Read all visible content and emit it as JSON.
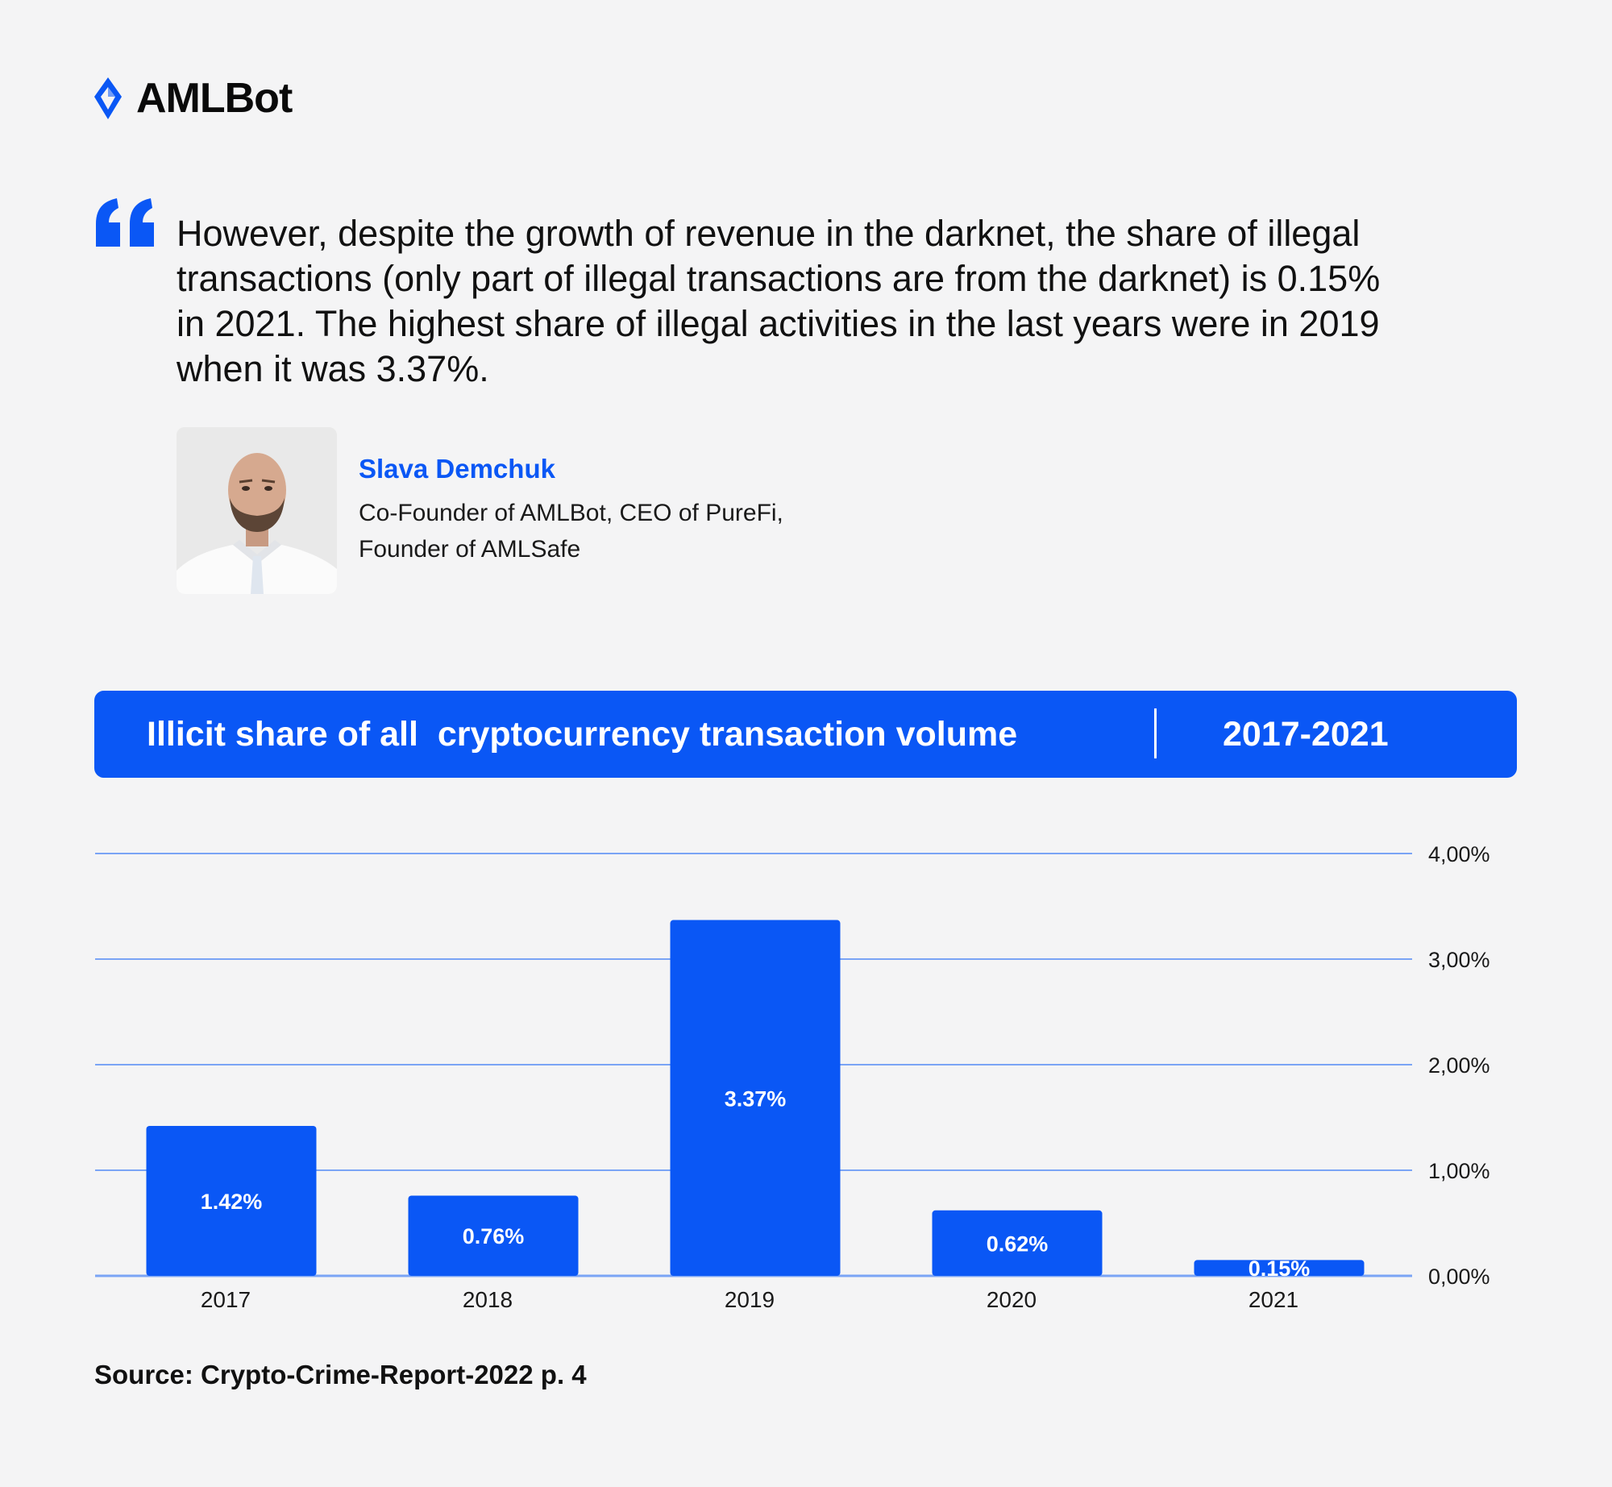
{
  "brand": {
    "name": "AMLBot",
    "accent": "#0a57f5"
  },
  "quote": {
    "icon": "quote-mark-icon",
    "lines": [
      "However, despite the growth of revenue in the darknet, the share of illegal",
      "transactions (only part of illegal transactions are from the darknet) is 0.15%",
      "in 2021. The highest share of illegal activities in the last years were in 2019",
      "when it was 3.37%."
    ]
  },
  "author": {
    "name": "Slava Demchuk",
    "role_lines": [
      "Co-Founder of AMLBot, CEO of PureFi,",
      "Founder of AMLSafe"
    ]
  },
  "chart_header": {
    "title": "Illicit share of all  cryptocurrency transaction volume",
    "period": "2017-2021"
  },
  "chart_data": {
    "type": "bar",
    "title": "Illicit share of all  cryptocurrency transaction volume",
    "subtitle": "2017-2021",
    "categories": [
      "2017",
      "2018",
      "2019",
      "2020",
      "2021"
    ],
    "values": [
      1.42,
      0.76,
      3.37,
      0.62,
      0.15
    ],
    "value_labels": [
      "1.42%",
      "0.76%",
      "3.37%",
      "0.62%",
      "0.15%"
    ],
    "ylim": [
      0,
      4
    ],
    "y_ticks": [
      0,
      1,
      2,
      3,
      4
    ],
    "y_tick_labels": [
      "0,00%",
      "1,00%",
      "2,00%",
      "3,00%",
      "4,00%"
    ],
    "y_axis_side": "right",
    "grid": true,
    "bar_color": "#0a57f5",
    "grid_color": "#7aa4f5",
    "xlabel": "",
    "ylabel": ""
  },
  "source": {
    "text": "Source: Crypto-Crime-Report-2022 p. 4"
  }
}
